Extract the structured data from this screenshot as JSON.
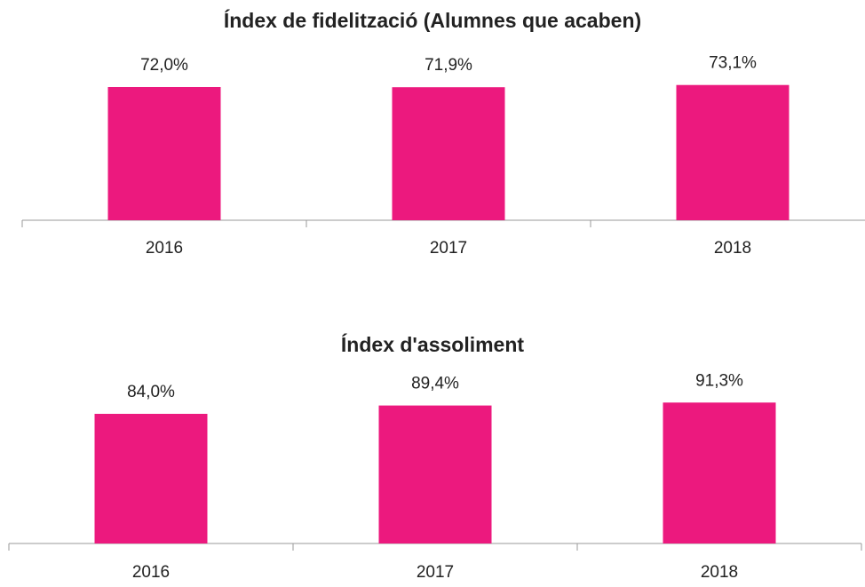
{
  "chart_data": [
    {
      "type": "bar",
      "title": "Índex de fidelització (Alumnes que acaben)",
      "categories": [
        "2016",
        "2017",
        "2018"
      ],
      "values": [
        72.0,
        71.9,
        73.1
      ],
      "value_labels": [
        "72,0%",
        "71,9%",
        "73,1%"
      ],
      "color": "#ec197e"
    },
    {
      "type": "bar",
      "title": "Índex d'assoliment",
      "categories": [
        "2016",
        "2017",
        "2018"
      ],
      "values": [
        84.0,
        89.4,
        91.3
      ],
      "value_labels": [
        "84,0%",
        "89,4%",
        "91,3%"
      ],
      "color": "#ec197e"
    }
  ]
}
